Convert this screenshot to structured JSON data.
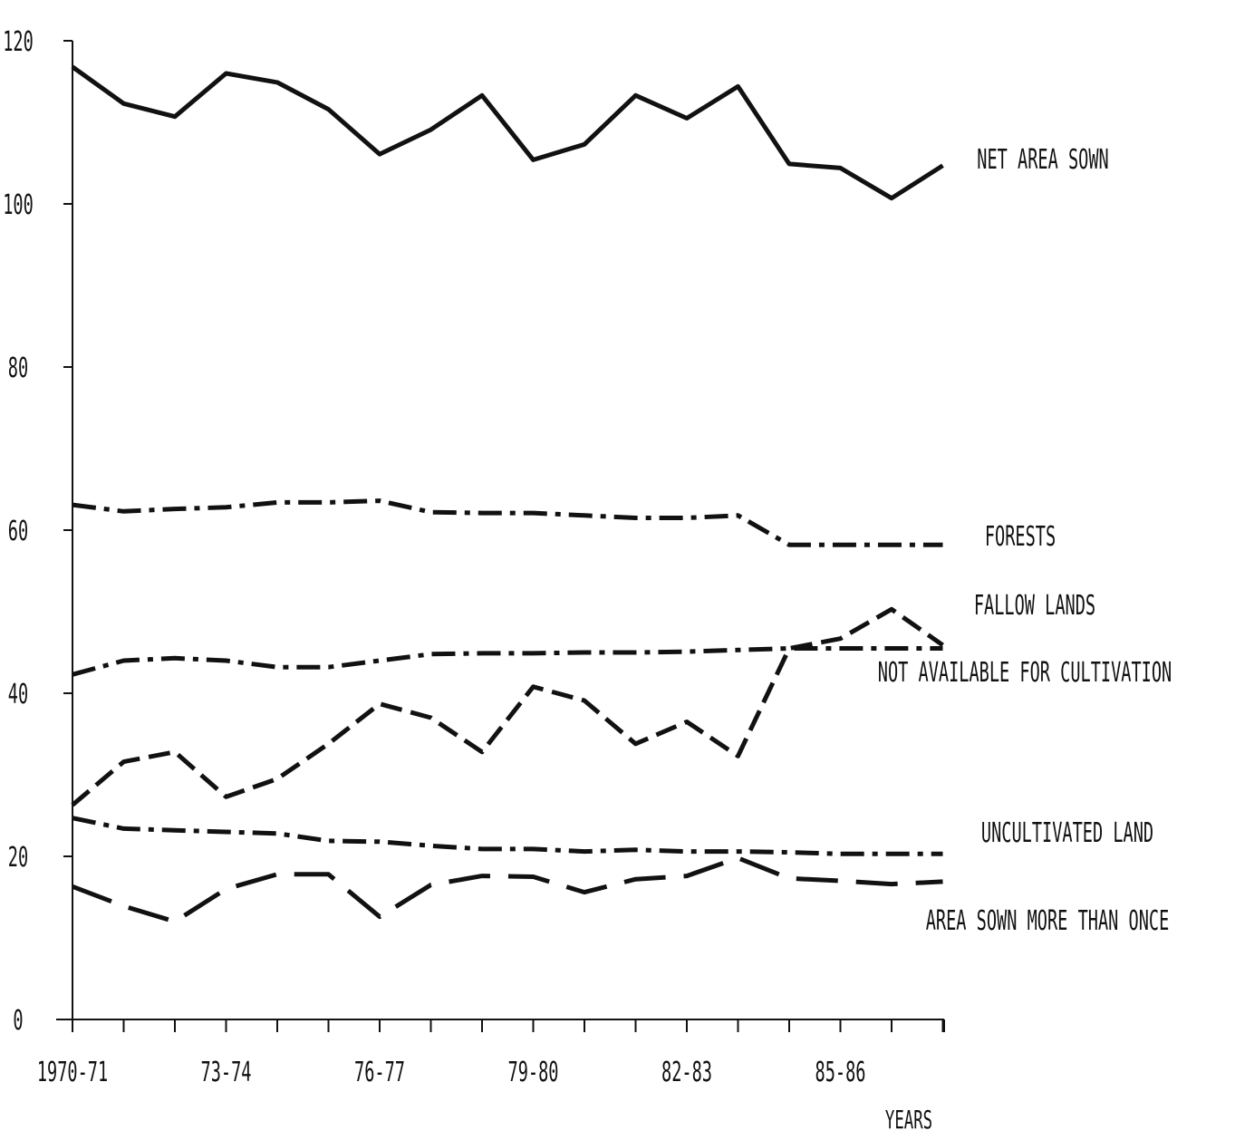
{
  "chart_data": {
    "type": "line",
    "title": "",
    "xlabel": "YEARS",
    "ylabel": "",
    "ylim": [
      0,
      120
    ],
    "yticks": [
      "0",
      "20",
      "40",
      "60",
      "80",
      "100",
      "120"
    ],
    "x_ticks_labeled": [
      "1970-71",
      "73-74",
      "76-77",
      "79-80",
      "82-83",
      "85-86"
    ],
    "x_point_count": 18,
    "grid": false,
    "series": [
      {
        "name": "NET AREA SOWN",
        "style": "solid",
        "values": [
          116.8,
          112.3,
          110.7,
          116.0,
          114.9,
          111.6,
          106.1,
          109.1,
          113.3,
          105.4,
          107.3,
          113.3,
          110.5,
          114.4,
          104.9,
          104.4,
          100.7,
          104.7
        ]
      },
      {
        "name": "FORESTS",
        "style": "dash-dot",
        "values": [
          63.1,
          62.3,
          62.6,
          62.8,
          63.4,
          63.4,
          63.6,
          62.2,
          62.1,
          62.1,
          61.8,
          61.5,
          61.5,
          61.8,
          58.2,
          58.2,
          58.2,
          58.2
        ]
      },
      {
        "name": "FALLOW LANDS",
        "style": "dashed",
        "values": [
          26.3,
          31.6,
          32.8,
          27.3,
          29.5,
          33.8,
          38.7,
          37.0,
          32.8,
          40.8,
          39.1,
          33.8,
          36.5,
          32.3,
          45.5,
          46.7,
          50.3,
          45.9
        ]
      },
      {
        "name": "NOT AVAILABLE FOR CULTIVATION",
        "style": "dash-dot",
        "values": [
          42.3,
          44.0,
          44.3,
          44.0,
          43.2,
          43.2,
          44.0,
          44.8,
          44.9,
          44.9,
          45.0,
          45.0,
          45.1,
          45.3,
          45.5,
          45.5,
          45.5,
          45.5
        ]
      },
      {
        "name": "UNCULTIVATED LAND",
        "style": "dash-dot",
        "values": [
          24.7,
          23.4,
          23.2,
          23.0,
          22.8,
          21.9,
          21.8,
          21.3,
          20.9,
          20.9,
          20.6,
          20.8,
          20.6,
          20.6,
          20.5,
          20.3,
          20.3,
          20.3
        ]
      },
      {
        "name": "AREA SOWN MORE THAN ONCE",
        "style": "long-dash",
        "values": [
          16.3,
          13.9,
          12.0,
          16.0,
          17.8,
          17.8,
          12.6,
          16.5,
          17.6,
          17.5,
          15.6,
          17.2,
          17.6,
          19.8,
          17.3,
          17.0,
          16.6,
          16.9
        ]
      }
    ]
  }
}
